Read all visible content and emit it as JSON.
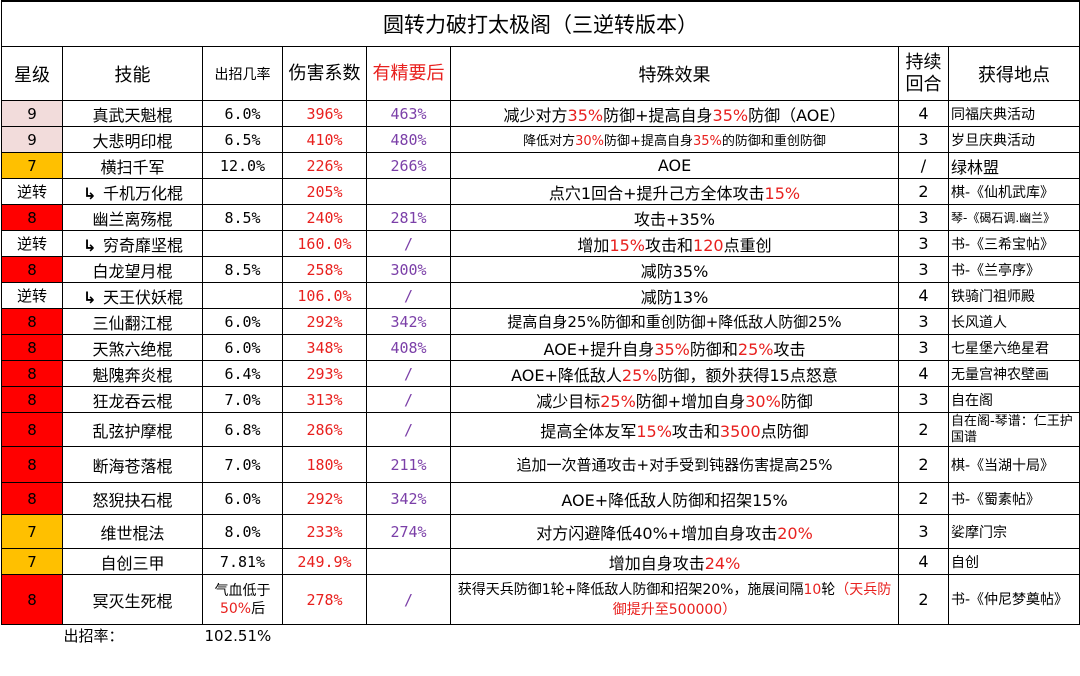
{
  "title": "圆转力破打太极阁（三逆转版本）",
  "colors": {
    "star9": "#f2dcdb",
    "star8": "#ff0000",
    "star7": "#ffc000",
    "red_text": "#e8201e",
    "purple_text": "#7b3fa8"
  },
  "headers": {
    "star": "星级",
    "skill": "技能",
    "rate": "出招几率",
    "coef": "伤害系数",
    "refined": "有精要后",
    "effect": "特殊效果",
    "duration": "持续回合",
    "location": "获得地点"
  },
  "rows": [
    {
      "star": "9",
      "skill": "真武天魁棍",
      "rate": "6.0%",
      "coef": "396%",
      "refined": "463%",
      "effect": [
        "减少对方",
        "35%",
        "防御+提高自身",
        "35%",
        "防御（AOE）"
      ],
      "duration": "4",
      "location": "同福庆典活动"
    },
    {
      "star": "9",
      "skill": "大悲明印棍",
      "rate": "6.5%",
      "coef": "410%",
      "refined": "480%",
      "effect": [
        "降低对方",
        "30%",
        "防御+提高自身",
        "35%",
        "的防御和重创防御"
      ],
      "duration": "3",
      "location": "岁旦庆典活动"
    },
    {
      "star": "7",
      "skill": "横扫千军",
      "rate": "12.0%",
      "coef": "226%",
      "refined": "266%",
      "effect": "AOE",
      "duration": "/",
      "location": "绿林盟"
    },
    {
      "star": "逆转",
      "skill": "千机万化棍",
      "rate": "",
      "coef": "205%",
      "refined": "",
      "effect": [
        "点穴1回合+提升己方全体攻击",
        "15%"
      ],
      "duration": "2",
      "location": "棋-《仙机武库》"
    },
    {
      "star": "8",
      "skill": "幽兰离殇棍",
      "rate": "8.5%",
      "coef": "240%",
      "refined": "281%",
      "effect": "攻击+35%",
      "duration": "3",
      "location": "琴-《碣石调.幽兰》"
    },
    {
      "star": "逆转",
      "skill": "穷奇靡坚棍",
      "rate": "",
      "coef": "160.0%",
      "refined": "/",
      "effect": [
        "增加",
        "15%",
        "攻击和",
        "120",
        "点重创"
      ],
      "duration": "3",
      "location": "书-《三希宝帖》"
    },
    {
      "star": "8",
      "skill": "白龙望月棍",
      "rate": "8.5%",
      "coef": "258%",
      "refined": "300%",
      "effect": "减防35%",
      "duration": "3",
      "location": "书-《兰亭序》"
    },
    {
      "star": "逆转",
      "skill": "天王伏妖棍",
      "rate": "",
      "coef": "106.0%",
      "refined": "/",
      "effect": "减防13%",
      "duration": "4",
      "location": "铁骑门祖师殿"
    },
    {
      "star": "8",
      "skill": "三仙翻江棍",
      "rate": "6.0%",
      "coef": "292%",
      "refined": "342%",
      "effect": "提高自身25%防御和重创防御+降低敌人防御25%",
      "duration": "3",
      "location": "长风道人"
    },
    {
      "star": "8",
      "skill": "天煞六绝棍",
      "rate": "6.0%",
      "coef": "348%",
      "refined": "408%",
      "effect": [
        "AOE+提升自身",
        "35%",
        "防御和",
        "25%",
        "攻击"
      ],
      "duration": "3",
      "location": "七星堡六绝星君"
    },
    {
      "star": "8",
      "skill": "魁隗奔炎棍",
      "rate": "6.4%",
      "coef": "293%",
      "refined": "/",
      "effect": [
        "AOE+降低敌人",
        "25%",
        "防御，额外获得15点怒意"
      ],
      "duration": "4",
      "location": "无量宫神农壁画"
    },
    {
      "star": "8",
      "skill": "狂龙吞云棍",
      "rate": "7.0%",
      "coef": "313%",
      "refined": "/",
      "effect": [
        "减少目标",
        "25%",
        "防御+增加自身",
        "30%",
        "防御"
      ],
      "duration": "3",
      "location": "自在阁"
    },
    {
      "star": "8",
      "skill": "乱弦护摩棍",
      "rate": "6.8%",
      "coef": "286%",
      "refined": "/",
      "effect": [
        "提高全体友军",
        "15%",
        "攻击和",
        "3500",
        "点防御"
      ],
      "duration": "2",
      "location": "自在阁-琴谱：仁王护国谱"
    },
    {
      "star": "8",
      "skill": "断海苍落棍",
      "rate": "7.0%",
      "coef": "180%",
      "refined": "211%",
      "effect": "追加一次普通攻击+对手受到钝器伤害提高25%",
      "duration": "2",
      "location": "棋-《当湖十局》"
    },
    {
      "star": "8",
      "skill": "怒猊抉石棍",
      "rate": "6.0%",
      "coef": "292%",
      "refined": "342%",
      "effect": "AOE+降低敌人防御和招架15%",
      "duration": "2",
      "location": "书-《蜀素帖》"
    },
    {
      "star": "7",
      "skill": "维世棍法",
      "rate": "8.0%",
      "coef": "233%",
      "refined": "274%",
      "effect": [
        "对方闪避降低40%+增加自身攻击",
        "20%"
      ],
      "duration": "3",
      "location": "娑摩门宗"
    },
    {
      "star": "7",
      "skill": "自创三甲",
      "rate": "7.81%",
      "coef": "249.9%",
      "refined": "",
      "effect": [
        "增加自身攻击",
        "24%"
      ],
      "duration": "4",
      "location": "自创"
    },
    {
      "star": "8",
      "skill": "冥灭生死棍",
      "rate_lines": [
        "气血低于",
        "50%",
        "后"
      ],
      "coef": "278%",
      "refined": "/",
      "effect_lines": [
        "获得天兵防御1轮+降低敌人防御和招架20%，施展间隔",
        "10",
        "轮",
        "（天兵防御提升至500000）"
      ],
      "duration": "2",
      "location": "书-《仲尼梦奠帖》"
    }
  ],
  "footer": {
    "label": "出招率：",
    "value": "102.51%"
  }
}
